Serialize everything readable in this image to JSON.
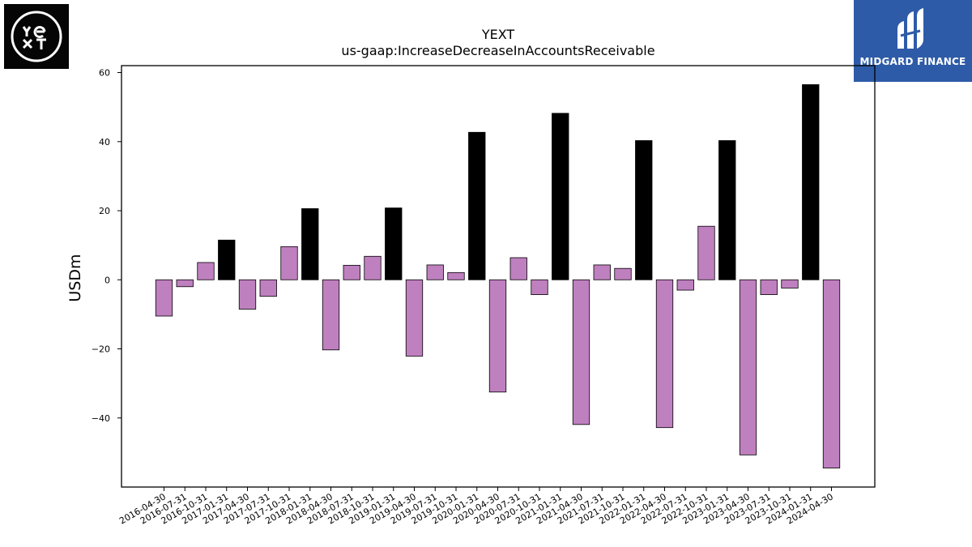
{
  "logos": {
    "left_mark": "YEXT",
    "right_brand": "MIDGARD FINANCE"
  },
  "chart_data": {
    "type": "bar",
    "title": "YEXT",
    "subtitle": "us-gaap:IncreaseDecreaseInAccountsReceivable",
    "xlabel": "",
    "ylabel": "USDm",
    "ylim": [
      -60,
      62
    ],
    "yticks": [
      60,
      40,
      20,
      0,
      -20,
      -40
    ],
    "ytick_labels": [
      "60",
      "40",
      "20",
      "0",
      "−20",
      "−40"
    ],
    "grid": false,
    "categories": [
      "2016-04-30",
      "2016-07-31",
      "2016-10-31",
      "2017-01-31",
      "2017-04-30",
      "2017-07-31",
      "2017-10-31",
      "2018-01-31",
      "2018-04-30",
      "2018-07-31",
      "2018-10-31",
      "2019-01-31",
      "2019-04-30",
      "2019-07-31",
      "2019-10-31",
      "2020-01-31",
      "2020-04-30",
      "2020-07-31",
      "2020-10-31",
      "2021-01-31",
      "2021-04-30",
      "2021-07-31",
      "2021-10-31",
      "2022-01-31",
      "2022-04-30",
      "2022-07-31",
      "2022-10-31",
      "2023-01-31",
      "2023-04-30",
      "2023-07-31",
      "2023-10-31",
      "2024-01-31",
      "2024-04-30"
    ],
    "values": [
      -10.5,
      -2.0,
      5.0,
      11.5,
      -8.5,
      -4.8,
      9.6,
      20.6,
      -20.3,
      4.2,
      6.8,
      20.8,
      -22.1,
      4.3,
      2.1,
      42.7,
      -32.5,
      6.4,
      -4.3,
      48.2,
      -41.9,
      4.3,
      3.3,
      40.3,
      -42.8,
      -3.0,
      15.5,
      40.3,
      -50.7,
      -4.3,
      -2.4,
      56.5,
      -54.5
    ],
    "colors": {
      "q4_bar": "#000000",
      "other_bar": "#bf80bf",
      "edge": "#000000"
    },
    "highlight_pattern": "fiscal Q4 (January period-end) bars drawn in black"
  }
}
